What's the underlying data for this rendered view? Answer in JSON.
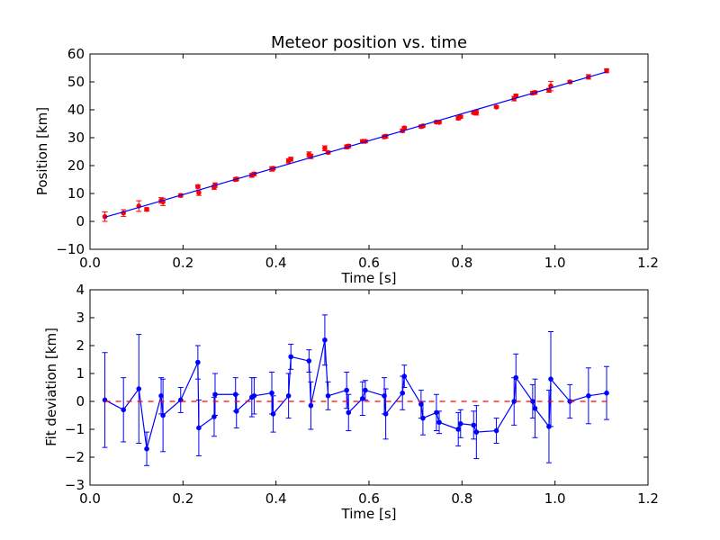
{
  "chart_data": [
    {
      "type": "scatter",
      "title": "Meteor position vs. time",
      "xlabel": "Time [s]",
      "ylabel": "Position [km]",
      "xlim": [
        0.0,
        1.2
      ],
      "ylim": [
        -10,
        60
      ],
      "xticks": [
        "0.0",
        "0.2",
        "0.4",
        "0.6",
        "0.8",
        "1.0",
        "1.2"
      ],
      "yticks": [
        "−10",
        "0",
        "10",
        "20",
        "30",
        "40",
        "50",
        "60"
      ],
      "xtick_values": [
        0.0,
        0.2,
        0.4,
        0.6,
        0.8,
        1.0,
        1.2
      ],
      "ytick_values": [
        -10,
        0,
        10,
        20,
        30,
        40,
        50,
        60
      ],
      "grid": false,
      "colors": {
        "points": "#ff0000",
        "fit_line": "#0000ff"
      },
      "series": [
        {
          "kind": "errorbar",
          "x": [
            0.032,
            0.072,
            0.105,
            0.122,
            0.153,
            0.157,
            0.195,
            0.232,
            0.234,
            0.267,
            0.269,
            0.313,
            0.315,
            0.348,
            0.353,
            0.391,
            0.394,
            0.427,
            0.432,
            0.471,
            0.475,
            0.505,
            0.512,
            0.552,
            0.556,
            0.586,
            0.592,
            0.633,
            0.636,
            0.672,
            0.676,
            0.712,
            0.716,
            0.745,
            0.751,
            0.792,
            0.797,
            0.825,
            0.831,
            0.874,
            0.912,
            0.916,
            0.952,
            0.957,
            0.987,
            0.991,
            1.032,
            1.072,
            1.111
          ],
          "y": [
            1.7,
            3.0,
            5.5,
            4.3,
            7.5,
            7.0,
            9.3,
            12.5,
            10.3,
            12.2,
            13.0,
            15.0,
            15.2,
            16.5,
            17.0,
            18.8,
            19.0,
            21.7,
            22.3,
            24.0,
            23.3,
            26.2,
            24.7,
            26.7,
            27.0,
            28.7,
            28.7,
            30.3,
            30.5,
            32.5,
            33.5,
            34.0,
            34.2,
            35.6,
            35.5,
            37.0,
            37.5,
            39.0,
            39.0,
            41.0,
            44.0,
            45.0,
            46.0,
            46.2,
            47.0,
            48.5,
            50.0,
            51.8,
            54.0
          ],
          "yerr": [
            1.7,
            1.2,
            1.9,
            0.6,
            1.0,
            1.3,
            0.6,
            0.6,
            1.0,
            0.7,
            0.8,
            0.6,
            0.6,
            0.7,
            0.6,
            0.8,
            0.6,
            0.8,
            0.7,
            0.9,
            0.8,
            0.9,
            0.5,
            0.7,
            0.6,
            0.6,
            0.5,
            0.6,
            0.6,
            0.6,
            0.5,
            0.5,
            0.4,
            0.5,
            0.4,
            0.6,
            0.5,
            0.5,
            0.9,
            0.4,
            0.8,
            0.6,
            0.6,
            0.6,
            0.7,
            1.7,
            0.5,
            0.8,
            0.7
          ]
        },
        {
          "kind": "fit-line",
          "x": [
            0.032,
            1.111
          ],
          "y": [
            1.5,
            53.6
          ]
        }
      ]
    },
    {
      "type": "line",
      "xlabel": "Time [s]",
      "ylabel": "Fit deviation [km]",
      "xlim": [
        0.0,
        1.2
      ],
      "ylim": [
        -3,
        4
      ],
      "xticks": [
        "0.0",
        "0.2",
        "0.4",
        "0.6",
        "0.8",
        "1.0",
        "1.2"
      ],
      "yticks": [
        "−3",
        "−2",
        "−1",
        "0",
        "1",
        "2",
        "3",
        "4"
      ],
      "xtick_values": [
        0.0,
        0.2,
        0.4,
        0.6,
        0.8,
        1.0,
        1.2
      ],
      "ytick_values": [
        -3,
        -2,
        -1,
        0,
        1,
        2,
        3,
        4
      ],
      "grid": false,
      "colors": {
        "line": "#0000ff",
        "zero_line": "#ff0000"
      },
      "series": [
        {
          "kind": "errorbar-line",
          "x": [
            0.032,
            0.072,
            0.105,
            0.122,
            0.153,
            0.157,
            0.195,
            0.232,
            0.234,
            0.267,
            0.269,
            0.313,
            0.315,
            0.348,
            0.353,
            0.391,
            0.394,
            0.427,
            0.432,
            0.471,
            0.475,
            0.505,
            0.512,
            0.552,
            0.556,
            0.586,
            0.592,
            0.633,
            0.636,
            0.672,
            0.676,
            0.712,
            0.716,
            0.745,
            0.751,
            0.792,
            0.797,
            0.825,
            0.831,
            0.874,
            0.912,
            0.916,
            0.952,
            0.957,
            0.987,
            0.991,
            1.032,
            1.072,
            1.111
          ],
          "y": [
            0.05,
            -0.3,
            0.45,
            -1.7,
            0.2,
            -0.5,
            0.05,
            1.4,
            -0.95,
            -0.55,
            0.25,
            0.25,
            -0.35,
            0.15,
            0.2,
            0.3,
            -0.45,
            0.2,
            1.6,
            1.45,
            -0.15,
            2.2,
            0.2,
            0.4,
            -0.4,
            0.1,
            0.4,
            0.2,
            -0.45,
            0.3,
            0.9,
            -0.1,
            -0.6,
            -0.4,
            -0.75,
            -1.0,
            -0.8,
            -0.85,
            -1.1,
            -1.05,
            0.0,
            0.85,
            0.0,
            -0.25,
            -0.9,
            0.8,
            0.0,
            0.2,
            0.3
          ],
          "yerr": [
            1.7,
            1.15,
            1.95,
            0.6,
            0.65,
            1.3,
            0.45,
            0.6,
            1.0,
            0.7,
            0.75,
            0.6,
            0.6,
            0.7,
            0.65,
            0.75,
            0.65,
            0.8,
            0.45,
            0.4,
            0.85,
            0.9,
            0.5,
            0.65,
            0.65,
            0.6,
            0.35,
            0.65,
            0.9,
            0.6,
            0.4,
            0.5,
            0.6,
            0.65,
            0.4,
            0.6,
            0.5,
            0.5,
            0.95,
            0.45,
            0.85,
            0.85,
            0.6,
            1.05,
            1.3,
            1.7,
            0.6,
            1.0,
            0.95
          ]
        },
        {
          "kind": "zero-line",
          "y": 0
        }
      ]
    }
  ]
}
